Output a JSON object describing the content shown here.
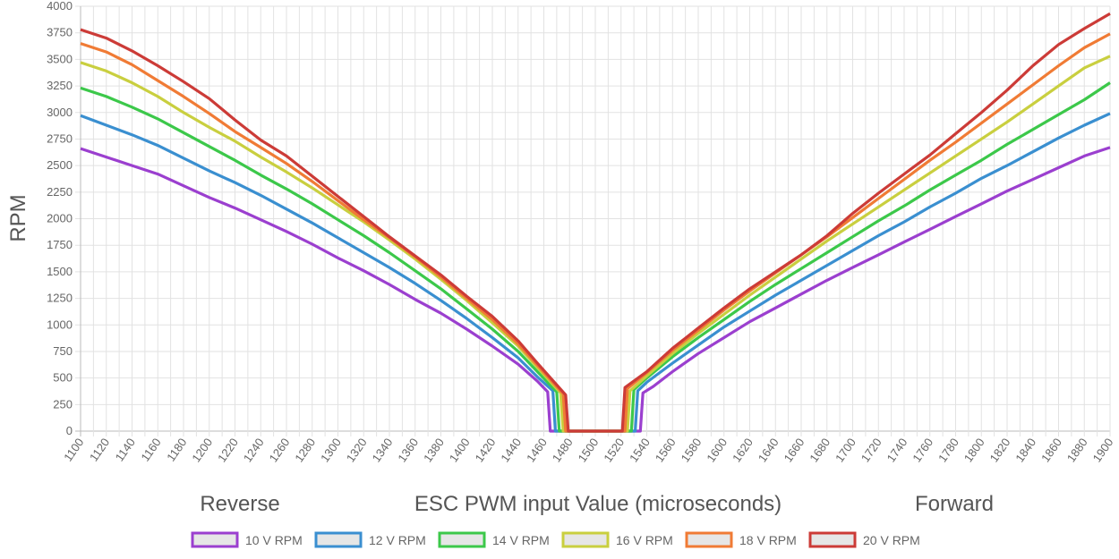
{
  "chart_data": {
    "type": "line",
    "ylabel": "RPM",
    "xlabel": "ESC PWM input Value (microseconds)",
    "annotations": {
      "left": "Reverse",
      "right": "Forward"
    },
    "xlim": [
      1100,
      1900
    ],
    "ylim": [
      0,
      4000
    ],
    "x_ticks": [
      1100,
      1120,
      1140,
      1160,
      1180,
      1200,
      1220,
      1240,
      1260,
      1280,
      1300,
      1320,
      1340,
      1360,
      1380,
      1400,
      1420,
      1440,
      1460,
      1480,
      1500,
      1520,
      1540,
      1560,
      1580,
      1600,
      1620,
      1640,
      1660,
      1680,
      1700,
      1720,
      1740,
      1760,
      1780,
      1800,
      1820,
      1840,
      1860,
      1880,
      1900
    ],
    "y_ticks": [
      0,
      250,
      500,
      750,
      1000,
      1250,
      1500,
      1750,
      2000,
      2250,
      2500,
      2750,
      3000,
      3250,
      3500,
      3750,
      4000
    ],
    "grid": true,
    "legend_position": "bottom",
    "series": [
      {
        "name": "10 V RPM",
        "color": "#9b3fcf",
        "reverse": [
          [
            1100,
            2660
          ],
          [
            1120,
            2580
          ],
          [
            1140,
            2500
          ],
          [
            1160,
            2420
          ],
          [
            1180,
            2310
          ],
          [
            1200,
            2200
          ],
          [
            1220,
            2100
          ],
          [
            1240,
            1990
          ],
          [
            1260,
            1880
          ],
          [
            1280,
            1760
          ],
          [
            1300,
            1630
          ],
          [
            1320,
            1510
          ],
          [
            1340,
            1380
          ],
          [
            1360,
            1240
          ],
          [
            1380,
            1110
          ],
          [
            1400,
            960
          ],
          [
            1420,
            800
          ],
          [
            1440,
            630
          ],
          [
            1455,
            470
          ],
          [
            1463,
            370
          ]
        ],
        "zero_range": [
          1465,
          1535
        ],
        "forward": [
          [
            1537,
            360
          ],
          [
            1545,
            420
          ],
          [
            1560,
            560
          ],
          [
            1580,
            730
          ],
          [
            1600,
            880
          ],
          [
            1620,
            1030
          ],
          [
            1640,
            1160
          ],
          [
            1660,
            1290
          ],
          [
            1680,
            1420
          ],
          [
            1700,
            1540
          ],
          [
            1720,
            1660
          ],
          [
            1740,
            1780
          ],
          [
            1760,
            1900
          ],
          [
            1780,
            2020
          ],
          [
            1800,
            2140
          ],
          [
            1820,
            2260
          ],
          [
            1840,
            2370
          ],
          [
            1860,
            2480
          ],
          [
            1880,
            2590
          ],
          [
            1900,
            2670
          ]
        ]
      },
      {
        "name": "12 V RPM",
        "color": "#3a8fd0",
        "reverse": [
          [
            1100,
            2970
          ],
          [
            1120,
            2880
          ],
          [
            1140,
            2790
          ],
          [
            1160,
            2690
          ],
          [
            1180,
            2570
          ],
          [
            1200,
            2450
          ],
          [
            1220,
            2340
          ],
          [
            1240,
            2220
          ],
          [
            1260,
            2090
          ],
          [
            1280,
            1960
          ],
          [
            1300,
            1820
          ],
          [
            1320,
            1680
          ],
          [
            1340,
            1540
          ],
          [
            1360,
            1390
          ],
          [
            1380,
            1230
          ],
          [
            1400,
            1060
          ],
          [
            1420,
            880
          ],
          [
            1440,
            690
          ],
          [
            1455,
            510
          ],
          [
            1467,
            380
          ]
        ],
        "zero_range": [
          1469,
          1531
        ],
        "forward": [
          [
            1533,
            380
          ],
          [
            1540,
            460
          ],
          [
            1560,
            640
          ],
          [
            1580,
            810
          ],
          [
            1600,
            980
          ],
          [
            1620,
            1130
          ],
          [
            1640,
            1280
          ],
          [
            1660,
            1420
          ],
          [
            1680,
            1560
          ],
          [
            1700,
            1700
          ],
          [
            1720,
            1840
          ],
          [
            1740,
            1970
          ],
          [
            1760,
            2110
          ],
          [
            1780,
            2240
          ],
          [
            1800,
            2380
          ],
          [
            1820,
            2500
          ],
          [
            1840,
            2630
          ],
          [
            1860,
            2760
          ],
          [
            1880,
            2880
          ],
          [
            1900,
            2990
          ]
        ]
      },
      {
        "name": "14 V RPM",
        "color": "#3cc84a",
        "reverse": [
          [
            1100,
            3230
          ],
          [
            1120,
            3150
          ],
          [
            1140,
            3050
          ],
          [
            1160,
            2940
          ],
          [
            1180,
            2810
          ],
          [
            1200,
            2680
          ],
          [
            1220,
            2550
          ],
          [
            1240,
            2410
          ],
          [
            1260,
            2280
          ],
          [
            1280,
            2140
          ],
          [
            1300,
            1990
          ],
          [
            1320,
            1840
          ],
          [
            1340,
            1680
          ],
          [
            1360,
            1510
          ],
          [
            1380,
            1340
          ],
          [
            1400,
            1150
          ],
          [
            1420,
            960
          ],
          [
            1440,
            750
          ],
          [
            1455,
            560
          ],
          [
            1470,
            370
          ]
        ],
        "zero_range": [
          1472,
          1528
        ],
        "forward": [
          [
            1530,
            390
          ],
          [
            1540,
            500
          ],
          [
            1560,
            700
          ],
          [
            1580,
            880
          ],
          [
            1600,
            1050
          ],
          [
            1620,
            1220
          ],
          [
            1640,
            1380
          ],
          [
            1660,
            1530
          ],
          [
            1680,
            1680
          ],
          [
            1700,
            1830
          ],
          [
            1720,
            1980
          ],
          [
            1740,
            2120
          ],
          [
            1760,
            2270
          ],
          [
            1780,
            2410
          ],
          [
            1800,
            2550
          ],
          [
            1820,
            2700
          ],
          [
            1840,
            2840
          ],
          [
            1860,
            2980
          ],
          [
            1880,
            3120
          ],
          [
            1900,
            3280
          ]
        ]
      },
      {
        "name": "16 V RPM",
        "color": "#c9cf3f",
        "reverse": [
          [
            1100,
            3470
          ],
          [
            1120,
            3390
          ],
          [
            1140,
            3280
          ],
          [
            1160,
            3150
          ],
          [
            1180,
            3000
          ],
          [
            1200,
            2860
          ],
          [
            1220,
            2730
          ],
          [
            1240,
            2580
          ],
          [
            1260,
            2440
          ],
          [
            1280,
            2290
          ],
          [
            1300,
            2130
          ],
          [
            1320,
            1970
          ],
          [
            1340,
            1800
          ],
          [
            1360,
            1620
          ],
          [
            1380,
            1430
          ],
          [
            1400,
            1230
          ],
          [
            1420,
            1020
          ],
          [
            1440,
            800
          ],
          [
            1455,
            600
          ],
          [
            1473,
            360
          ]
        ],
        "zero_range": [
          1475,
          1525
        ],
        "forward": [
          [
            1527,
            380
          ],
          [
            1540,
            520
          ],
          [
            1560,
            730
          ],
          [
            1580,
            920
          ],
          [
            1600,
            1100
          ],
          [
            1620,
            1280
          ],
          [
            1640,
            1450
          ],
          [
            1660,
            1620
          ],
          [
            1680,
            1790
          ],
          [
            1700,
            1950
          ],
          [
            1720,
            2110
          ],
          [
            1740,
            2270
          ],
          [
            1760,
            2430
          ],
          [
            1780,
            2590
          ],
          [
            1800,
            2750
          ],
          [
            1820,
            2910
          ],
          [
            1840,
            3080
          ],
          [
            1860,
            3250
          ],
          [
            1880,
            3420
          ],
          [
            1900,
            3530
          ]
        ]
      },
      {
        "name": "18 V RPM",
        "color": "#f07b35",
        "reverse": [
          [
            1100,
            3650
          ],
          [
            1120,
            3570
          ],
          [
            1140,
            3450
          ],
          [
            1160,
            3300
          ],
          [
            1180,
            3150
          ],
          [
            1200,
            2990
          ],
          [
            1220,
            2820
          ],
          [
            1240,
            2670
          ],
          [
            1260,
            2520
          ],
          [
            1280,
            2350
          ],
          [
            1300,
            2170
          ],
          [
            1320,
            1990
          ],
          [
            1340,
            1820
          ],
          [
            1360,
            1640
          ],
          [
            1380,
            1450
          ],
          [
            1400,
            1250
          ],
          [
            1420,
            1050
          ],
          [
            1440,
            820
          ],
          [
            1455,
            620
          ],
          [
            1475,
            350
          ]
        ],
        "zero_range": [
          1477,
          1523
        ],
        "forward": [
          [
            1525,
            400
          ],
          [
            1540,
            550
          ],
          [
            1560,
            760
          ],
          [
            1580,
            950
          ],
          [
            1600,
            1140
          ],
          [
            1620,
            1320
          ],
          [
            1640,
            1490
          ],
          [
            1660,
            1660
          ],
          [
            1680,
            1830
          ],
          [
            1700,
            2010
          ],
          [
            1720,
            2190
          ],
          [
            1740,
            2370
          ],
          [
            1760,
            2550
          ],
          [
            1780,
            2720
          ],
          [
            1800,
            2900
          ],
          [
            1820,
            3080
          ],
          [
            1840,
            3260
          ],
          [
            1860,
            3440
          ],
          [
            1880,
            3610
          ],
          [
            1900,
            3740
          ]
        ]
      },
      {
        "name": "20 V RPM",
        "color": "#cc3b37",
        "reverse": [
          [
            1100,
            3780
          ],
          [
            1120,
            3700
          ],
          [
            1140,
            3580
          ],
          [
            1160,
            3440
          ],
          [
            1180,
            3290
          ],
          [
            1200,
            3130
          ],
          [
            1220,
            2930
          ],
          [
            1240,
            2740
          ],
          [
            1260,
            2590
          ],
          [
            1280,
            2400
          ],
          [
            1300,
            2210
          ],
          [
            1320,
            2020
          ],
          [
            1340,
            1830
          ],
          [
            1360,
            1650
          ],
          [
            1380,
            1470
          ],
          [
            1400,
            1270
          ],
          [
            1420,
            1080
          ],
          [
            1440,
            850
          ],
          [
            1455,
            640
          ],
          [
            1477,
            340
          ]
        ],
        "zero_range": [
          1479,
          1521
        ],
        "forward": [
          [
            1523,
            410
          ],
          [
            1540,
            560
          ],
          [
            1560,
            780
          ],
          [
            1580,
            970
          ],
          [
            1600,
            1160
          ],
          [
            1620,
            1340
          ],
          [
            1640,
            1500
          ],
          [
            1660,
            1660
          ],
          [
            1680,
            1840
          ],
          [
            1700,
            2050
          ],
          [
            1720,
            2240
          ],
          [
            1740,
            2420
          ],
          [
            1760,
            2600
          ],
          [
            1780,
            2800
          ],
          [
            1800,
            3000
          ],
          [
            1820,
            3210
          ],
          [
            1840,
            3440
          ],
          [
            1860,
            3640
          ],
          [
            1880,
            3790
          ],
          [
            1900,
            3930
          ]
        ]
      }
    ]
  }
}
